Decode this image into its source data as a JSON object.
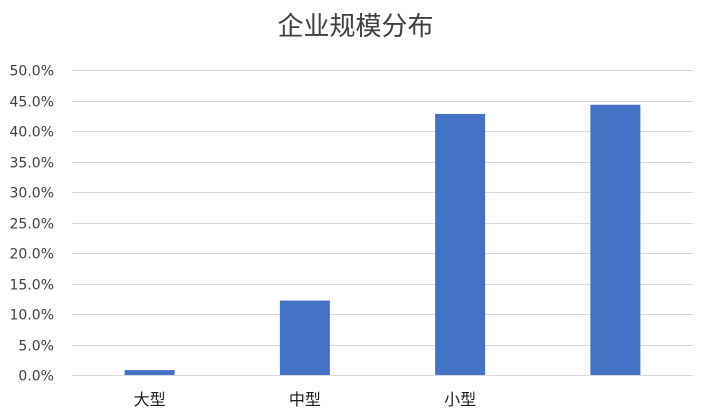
{
  "chart_data": {
    "type": "bar",
    "title": "企业规模分布",
    "categories": [
      "大型",
      "中型",
      "小型",
      ""
    ],
    "values": [
      0.8,
      12.2,
      42.8,
      44.3
    ],
    "ylim": [
      0,
      50
    ],
    "ytick_step": 5,
    "ytick_format": "percent_1dp",
    "grid": true,
    "legend": "none",
    "bar_color": "#4472C4",
    "grid_color": "#D9D9D9"
  }
}
